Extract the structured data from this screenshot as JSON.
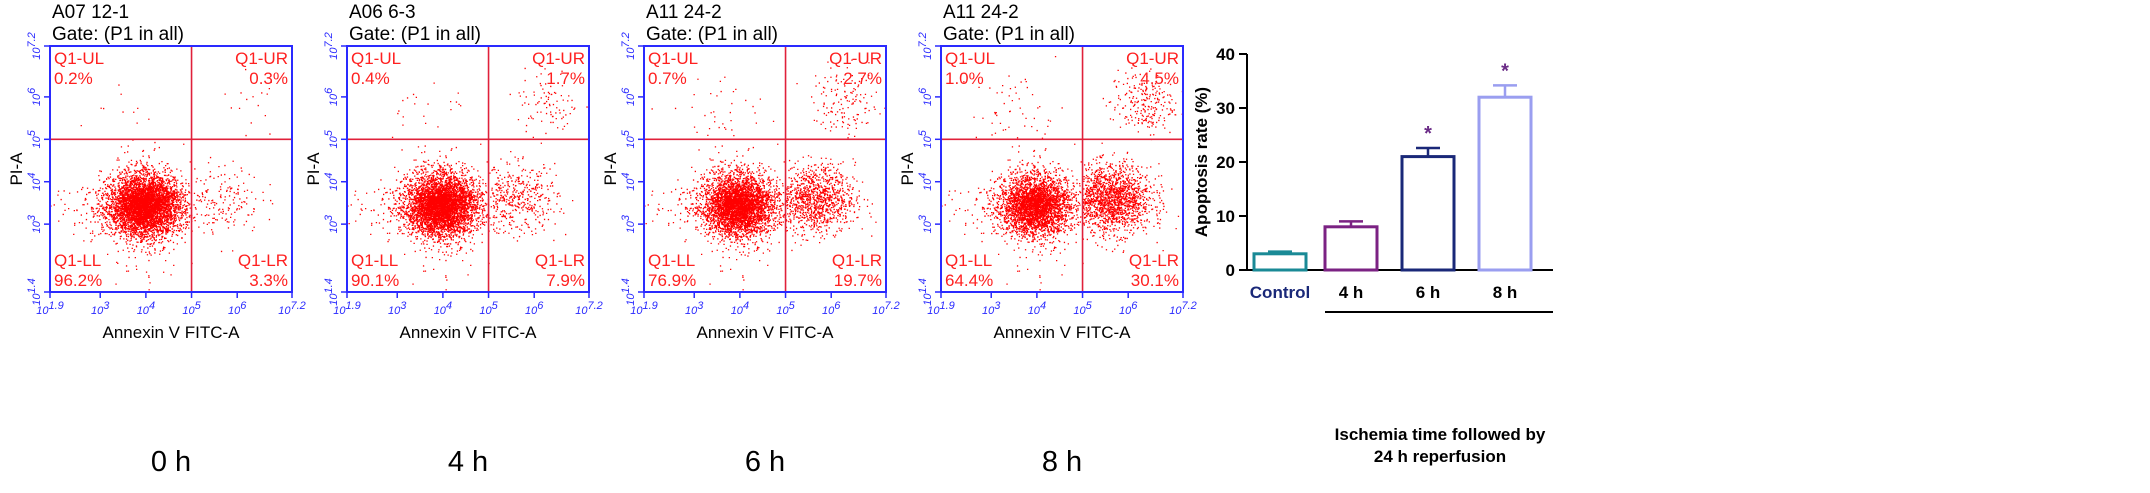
{
  "flow_panels": [
    {
      "sample": "A07 12-1",
      "gate": "Gate: (P1 in all)",
      "time": "0 h",
      "quadrants": [
        {
          "label": "Q1-UL",
          "value": "0.2%"
        },
        {
          "label": "Q1-UR",
          "value": "0.3%"
        },
        {
          "label": "Q1-LL",
          "value": "96.2%"
        },
        {
          "label": "Q1-LR",
          "value": "3.3%"
        }
      ]
    },
    {
      "sample": "A06 6-3",
      "gate": "Gate: (P1 in all)",
      "time": "4 h",
      "quadrants": [
        {
          "label": "Q1-UL",
          "value": "0.4%"
        },
        {
          "label": "Q1-UR",
          "value": "1.7%"
        },
        {
          "label": "Q1-LL",
          "value": "90.1%"
        },
        {
          "label": "Q1-LR",
          "value": "7.9%"
        }
      ]
    },
    {
      "sample": "A11 24-2",
      "gate": "Gate: (P1 in all)",
      "time": "6 h",
      "quadrants": [
        {
          "label": "Q1-UL",
          "value": "0.7%"
        },
        {
          "label": "Q1-UR",
          "value": "2.7%"
        },
        {
          "label": "Q1-LL",
          "value": "76.9%"
        },
        {
          "label": "Q1-LR",
          "value": "19.7%"
        }
      ]
    },
    {
      "sample": "A11 24-2",
      "gate": "Gate: (P1 in all)",
      "time": "8 h",
      "quadrants": [
        {
          "label": "Q1-UL",
          "value": "1.0%"
        },
        {
          "label": "Q1-UR",
          "value": "4.5%"
        },
        {
          "label": "Q1-LL",
          "value": "64.4%"
        },
        {
          "label": "Q1-LR",
          "value": "30.1%"
        }
      ]
    }
  ],
  "flow_axes": {
    "xlabel": "Annexin V FITC-A",
    "ylabel": "PI-A",
    "x_ticks": [
      "10^1.9",
      "10^3",
      "10^4",
      "10^5",
      "10^6",
      "10^7.2"
    ],
    "y_ticks": [
      "10^1.4",
      "10^3",
      "10^4",
      "10^5",
      "10^6",
      "10^7.2"
    ],
    "x_range": [
      1.9,
      7.2
    ],
    "y_range": [
      1.4,
      7.2
    ],
    "quadrant_gate": {
      "x": 5.0,
      "y": 5.0
    }
  },
  "chart_data": {
    "type": "bar",
    "categories": [
      "Control",
      "4 h",
      "6 h",
      "8 h"
    ],
    "values": [
      3,
      8,
      21,
      32
    ],
    "errors": [
      0.4,
      1.0,
      1.6,
      2.2
    ],
    "significance": [
      "",
      "",
      "*",
      "*"
    ],
    "ylabel": "Apoptosis rate (%)",
    "yticks": [
      0,
      10,
      20,
      30,
      40
    ],
    "ylim": [
      0,
      40
    ],
    "group_label_line1": "Ischemia  time followed by",
    "group_label_line2": "24 h reperfusion",
    "colors": [
      "#1a8a96",
      "#7b2283",
      "#1a2878",
      "#9a9ef0"
    ],
    "star_color": "#6a2a86"
  },
  "colors": {
    "dots": "#ff0000",
    "axes": "#2a2aff",
    "quad_text": "#ff2020"
  }
}
